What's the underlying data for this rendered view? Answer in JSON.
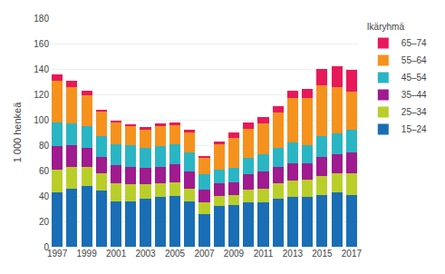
{
  "chart_data": {
    "type": "bar",
    "stacked": true,
    "ylabel": "1 000 henkeä",
    "legend_title": "Ikäryhmä",
    "legend": "right",
    "grid": true,
    "categories": [
      "1997",
      null,
      "1999",
      null,
      "2001",
      null,
      "2003",
      null,
      "2005",
      null,
      "2007",
      null,
      "2009",
      null,
      "2011",
      null,
      "2013",
      null,
      "2015",
      null,
      "2017"
    ],
    "series": [
      {
        "name": "15–24",
        "color": "#1a6eb5",
        "values": [
          43,
          46,
          48,
          44,
          36,
          36,
          38,
          39,
          40,
          36,
          26,
          32,
          33,
          35,
          35,
          38,
          39,
          39,
          41,
          43,
          41
        ]
      },
      {
        "name": "25–34",
        "color": "#bace2a",
        "values": [
          18,
          17,
          15,
          14,
          14,
          13,
          11,
          11,
          11,
          10,
          9,
          8,
          8,
          10,
          11,
          12,
          13,
          14,
          15,
          15,
          17
        ]
      },
      {
        "name": "35–44",
        "color": "#a01a90",
        "values": [
          18,
          17,
          15,
          13,
          14,
          14,
          13,
          13,
          14,
          13,
          10,
          10,
          10,
          12,
          13,
          13,
          14,
          13,
          15,
          15,
          16
        ]
      },
      {
        "name": "45–54",
        "color": "#2ab5c4",
        "values": [
          19,
          17,
          17,
          16,
          17,
          17,
          16,
          16,
          16,
          15,
          12,
          11,
          11,
          13,
          14,
          15,
          16,
          14,
          16,
          16,
          18
        ]
      },
      {
        "name": "55–64",
        "color": "#f5921e",
        "values": [
          33,
          29,
          24,
          20,
          17,
          15,
          14,
          16,
          15,
          16,
          13,
          20,
          24,
          23,
          24,
          28,
          35,
          37,
          40,
          37,
          30
        ]
      },
      {
        "name": "65–74",
        "color": "#e8195a",
        "values": [
          5,
          5,
          4,
          1,
          1,
          1,
          2,
          2,
          2,
          2,
          1,
          2,
          4,
          5,
          5,
          5,
          6,
          7,
          13,
          16,
          17
        ]
      }
    ],
    "ylim": [
      0,
      180
    ],
    "yticks": [
      0,
      20,
      40,
      60,
      80,
      100,
      120,
      140,
      160,
      180
    ]
  }
}
